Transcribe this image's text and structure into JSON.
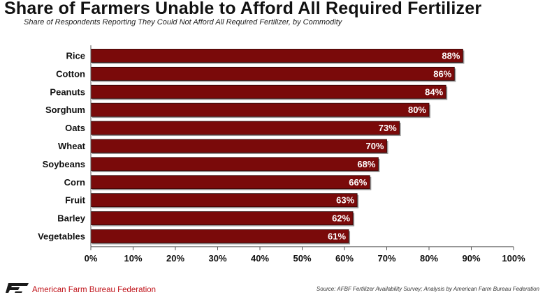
{
  "header": {
    "title": "Share of Farmers Unable to Afford All Required Fertilizer",
    "subtitle": "Share of Respondents Reporting They Could Not Afford All Required Fertilizer, by Commodity"
  },
  "chart_data": {
    "type": "bar",
    "orientation": "horizontal",
    "categories": [
      "Rice",
      "Cotton",
      "Peanuts",
      "Sorghum",
      "Oats",
      "Wheat",
      "Soybeans",
      "Corn",
      "Fruit",
      "Barley",
      "Vegetables"
    ],
    "values": [
      88,
      86,
      84,
      80,
      73,
      70,
      68,
      66,
      63,
      62,
      61
    ],
    "data_labels": [
      "88%",
      "86%",
      "84%",
      "80%",
      "73%",
      "70%",
      "68%",
      "66%",
      "63%",
      "62%",
      "61%"
    ],
    "xlim": [
      0,
      100
    ],
    "xticks": [
      0,
      10,
      20,
      30,
      40,
      50,
      60,
      70,
      80,
      90,
      100
    ],
    "xtick_labels": [
      "0%",
      "10%",
      "20%",
      "30%",
      "40%",
      "50%",
      "60%",
      "70%",
      "80%",
      "90%",
      "100%"
    ],
    "grid": false,
    "legend": "none",
    "bar_color": "#7a0a0a"
  },
  "footer": {
    "organization": "American Farm Bureau Federation",
    "logo_icon": "fb-logo-icon",
    "logo_color": "#1a1a1a",
    "source": "Source: AFBF Fertilizer Availability Survey; Analysis by American Farm Bureau Federation"
  }
}
